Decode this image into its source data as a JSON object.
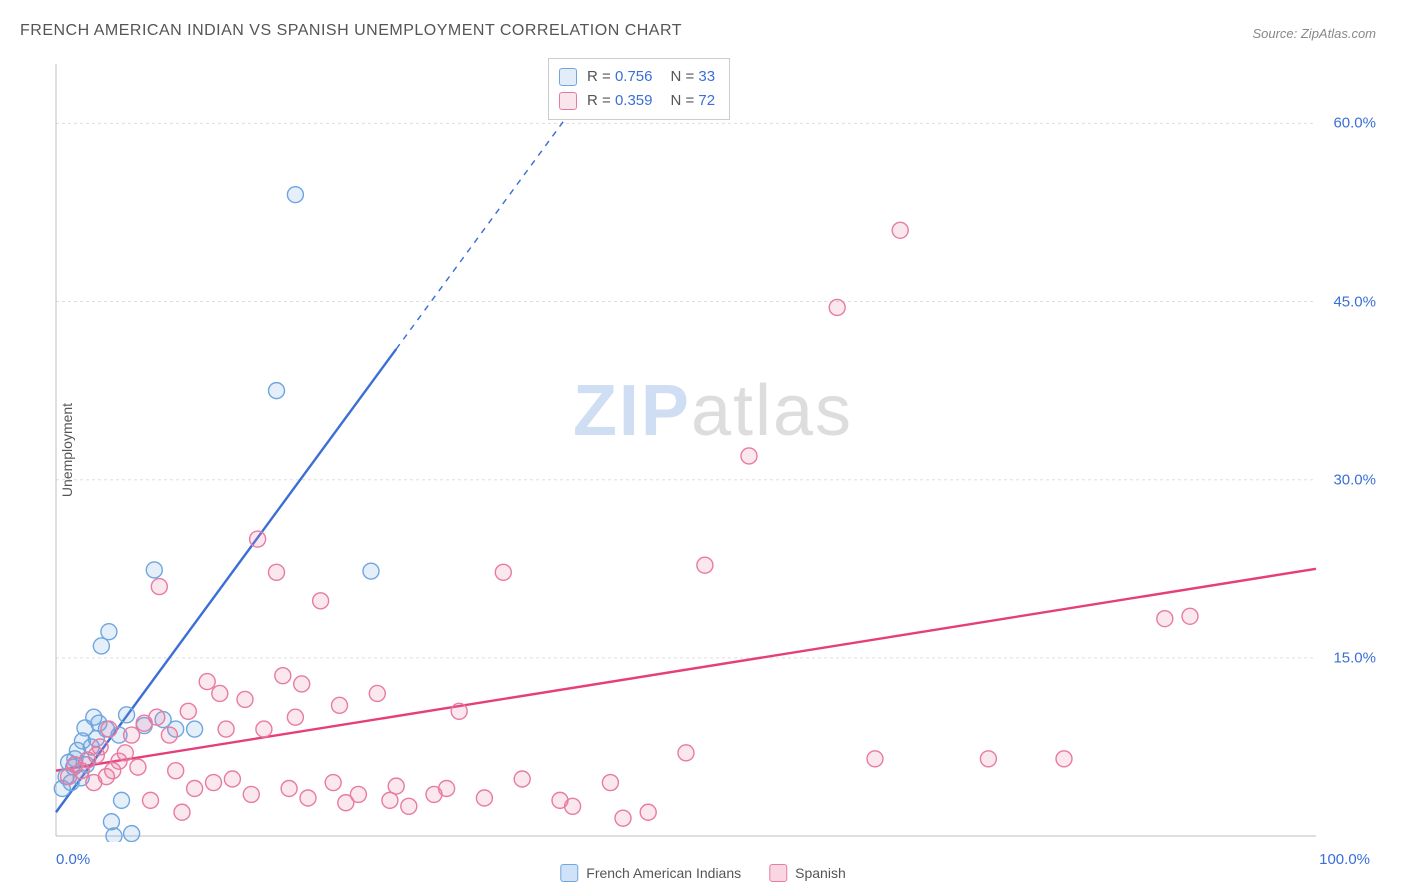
{
  "title": "FRENCH AMERICAN INDIAN VS SPANISH UNEMPLOYMENT CORRELATION CHART",
  "source": "Source: ZipAtlas.com",
  "watermark": {
    "part1": "ZIP",
    "part2": "atlas"
  },
  "chart": {
    "type": "scatter",
    "yaxis_label": "Unemployment",
    "xlim": [
      0,
      100
    ],
    "ylim": [
      0,
      65
    ],
    "xticks": {
      "min_label": "0.0%",
      "max_label": "100.0%"
    },
    "yticks": [
      {
        "value": 15,
        "label": "15.0%"
      },
      {
        "value": 30,
        "label": "30.0%"
      },
      {
        "value": 45,
        "label": "45.0%"
      },
      {
        "value": 60,
        "label": "60.0%"
      }
    ],
    "grid_color": "#dddddd",
    "axis_color": "#bfbfbf",
    "background_color": "#ffffff",
    "marker_radius": 8,
    "marker_fill_opacity": 0.18,
    "marker_stroke_width": 1.4,
    "line_width": 2.4,
    "series": [
      {
        "name": "French American Indians",
        "color_stroke": "#6fa6e0",
        "color_line": "#3b6fd6",
        "R": "0.756",
        "N": "33",
        "trend": {
          "x1": 0,
          "y1": 2,
          "x2": 27,
          "y2": 41,
          "extend_x2": 45,
          "extend_y2": 67
        },
        "points": [
          [
            0.5,
            4.0
          ],
          [
            0.8,
            5.0
          ],
          [
            1.0,
            6.2
          ],
          [
            1.2,
            4.5
          ],
          [
            1.4,
            5.8
          ],
          [
            1.5,
            6.5
          ],
          [
            1.7,
            7.2
          ],
          [
            2.0,
            4.9
          ],
          [
            2.1,
            8.0
          ],
          [
            2.3,
            9.1
          ],
          [
            2.4,
            6.0
          ],
          [
            2.8,
            7.5
          ],
          [
            3.0,
            10.0
          ],
          [
            3.2,
            8.2
          ],
          [
            3.4,
            9.5
          ],
          [
            3.6,
            16.0
          ],
          [
            4.0,
            9.0
          ],
          [
            4.2,
            17.2
          ],
          [
            4.4,
            1.2
          ],
          [
            4.6,
            0.0
          ],
          [
            5.0,
            8.5
          ],
          [
            5.2,
            3.0
          ],
          [
            5.6,
            10.2
          ],
          [
            6.0,
            0.2
          ],
          [
            7.0,
            9.3
          ],
          [
            7.8,
            22.4
          ],
          [
            8.5,
            9.8
          ],
          [
            9.5,
            9.0
          ],
          [
            11.0,
            9.0
          ],
          [
            17.5,
            37.5
          ],
          [
            19.0,
            54.0
          ],
          [
            25.0,
            22.3
          ]
        ]
      },
      {
        "name": "Spanish",
        "color_stroke": "#e87ba2",
        "color_line": "#e63e7b",
        "R": "0.359",
        "N": "72",
        "trend": {
          "x1": 0,
          "y1": 5.5,
          "x2": 100,
          "y2": 22.5
        },
        "points": [
          [
            1.0,
            5.0
          ],
          [
            1.5,
            6.0
          ],
          [
            2.0,
            5.5
          ],
          [
            2.5,
            6.4
          ],
          [
            3.0,
            4.5
          ],
          [
            3.2,
            6.8
          ],
          [
            3.5,
            7.5
          ],
          [
            4.0,
            5.0
          ],
          [
            4.2,
            9.0
          ],
          [
            4.5,
            5.5
          ],
          [
            5.0,
            6.3
          ],
          [
            5.5,
            7.0
          ],
          [
            6.0,
            8.5
          ],
          [
            6.5,
            5.8
          ],
          [
            7.0,
            9.5
          ],
          [
            7.5,
            3.0
          ],
          [
            8.0,
            10.0
          ],
          [
            9.0,
            8.5
          ],
          [
            9.5,
            5.5
          ],
          [
            8.2,
            21.0
          ],
          [
            10.0,
            2.0
          ],
          [
            10.5,
            10.5
          ],
          [
            11.0,
            4.0
          ],
          [
            12.0,
            13.0
          ],
          [
            12.5,
            4.5
          ],
          [
            13.0,
            12.0
          ],
          [
            13.5,
            9.0
          ],
          [
            14.0,
            4.8
          ],
          [
            15.0,
            11.5
          ],
          [
            15.5,
            3.5
          ],
          [
            16.0,
            25.0
          ],
          [
            16.5,
            9.0
          ],
          [
            17.5,
            22.2
          ],
          [
            18.0,
            13.5
          ],
          [
            18.5,
            4.0
          ],
          [
            19.0,
            10.0
          ],
          [
            19.5,
            12.8
          ],
          [
            20.0,
            3.2
          ],
          [
            21.0,
            19.8
          ],
          [
            22.0,
            4.5
          ],
          [
            22.5,
            11.0
          ],
          [
            23.0,
            2.8
          ],
          [
            24.0,
            3.5
          ],
          [
            25.5,
            12.0
          ],
          [
            26.5,
            3.0
          ],
          [
            27.0,
            4.2
          ],
          [
            28.0,
            2.5
          ],
          [
            30.0,
            3.5
          ],
          [
            31.0,
            4.0
          ],
          [
            32.0,
            10.5
          ],
          [
            34.0,
            3.2
          ],
          [
            35.5,
            22.2
          ],
          [
            37.0,
            4.8
          ],
          [
            40.0,
            3.0
          ],
          [
            41.0,
            2.5
          ],
          [
            44.0,
            4.5
          ],
          [
            45.0,
            1.5
          ],
          [
            47.0,
            2.0
          ],
          [
            50.0,
            7.0
          ],
          [
            51.5,
            22.8
          ],
          [
            55.0,
            32.0
          ],
          [
            62.0,
            44.5
          ],
          [
            65.0,
            6.5
          ],
          [
            67.0,
            51.0
          ],
          [
            74.0,
            6.5
          ],
          [
            80.0,
            6.5
          ],
          [
            88.0,
            18.3
          ],
          [
            90.0,
            18.5
          ]
        ]
      }
    ],
    "legend_bottom": [
      {
        "label": "French American Indians",
        "fill": "#cfe2f7",
        "stroke": "#6fa6e0"
      },
      {
        "label": "Spanish",
        "fill": "#f9d6e2",
        "stroke": "#e87ba2"
      }
    ]
  }
}
